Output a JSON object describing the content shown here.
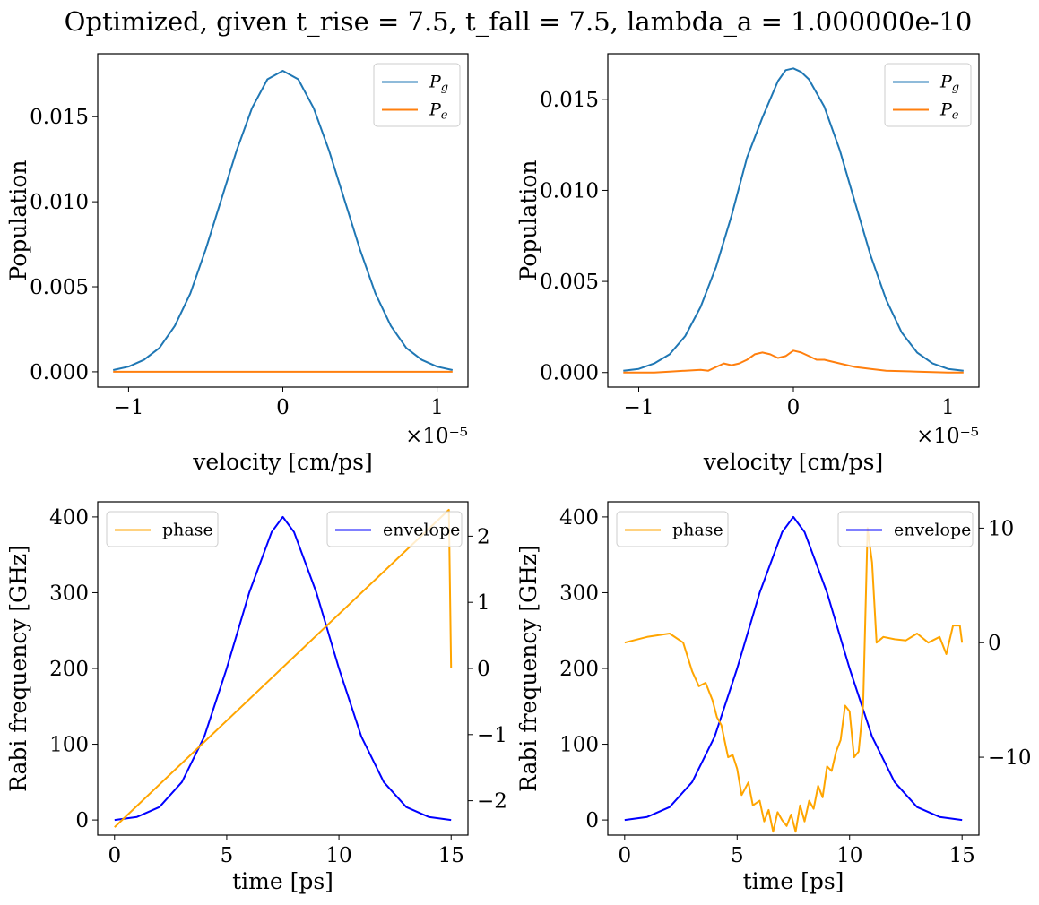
{
  "figure": {
    "title": "Optimized, given t_rise = 7.5, t_fall = 7.5, lambda_a = 1.000000e-10"
  },
  "colors": {
    "pg": "#1f77b4",
    "pe": "#ff7f0e",
    "phase": "#ffa500",
    "envelope": "#0000ff"
  },
  "chart_data": [
    {
      "id": "pop_left",
      "type": "line",
      "xlabel": "velocity [cm/ps]",
      "ylabel": "Population",
      "x_offset_text": "×10⁻⁵",
      "x_scale_exponent": -5,
      "xlim": [
        -1.2,
        1.2
      ],
      "ylim": [
        -0.0009,
        0.0187
      ],
      "x_ticks": [
        -1,
        0,
        1
      ],
      "x_tick_labels": [
        "−1",
        "0",
        "1"
      ],
      "y_ticks": [
        0.0,
        0.005,
        0.01,
        0.015
      ],
      "y_tick_labels": [
        "0.000",
        "0.005",
        "0.010",
        "0.015"
      ],
      "legend": "top-right",
      "grid": false,
      "series": [
        {
          "name": "P_g",
          "color_key": "pg",
          "x": [
            -1.1,
            -1.0,
            -0.9,
            -0.8,
            -0.7,
            -0.6,
            -0.5,
            -0.4,
            -0.3,
            -0.2,
            -0.1,
            0.0,
            0.1,
            0.2,
            0.3,
            0.4,
            0.5,
            0.6,
            0.7,
            0.8,
            0.9,
            1.0,
            1.1
          ],
          "y": [
            0.0001,
            0.0003,
            0.0007,
            0.0014,
            0.0027,
            0.0046,
            0.0072,
            0.0101,
            0.013,
            0.0155,
            0.0172,
            0.0177,
            0.0172,
            0.0155,
            0.013,
            0.0101,
            0.0072,
            0.0046,
            0.0027,
            0.0014,
            0.0007,
            0.0003,
            0.0001
          ]
        },
        {
          "name": "P_e",
          "color_key": "pe",
          "x": [
            -1.1,
            1.1
          ],
          "y": [
            0.0,
            0.0
          ]
        }
      ]
    },
    {
      "id": "pop_right",
      "type": "line",
      "xlabel": "velocity [cm/ps]",
      "ylabel": "Population",
      "x_offset_text": "×10⁻⁵",
      "x_scale_exponent": -5,
      "xlim": [
        -1.2,
        1.2
      ],
      "ylim": [
        -0.0008,
        0.0175
      ],
      "x_ticks": [
        -1,
        0,
        1
      ],
      "x_tick_labels": [
        "−1",
        "0",
        "1"
      ],
      "y_ticks": [
        0.0,
        0.005,
        0.01,
        0.015
      ],
      "y_tick_labels": [
        "0.000",
        "0.005",
        "0.010",
        "0.015"
      ],
      "legend": "top-right",
      "grid": false,
      "series": [
        {
          "name": "P_g",
          "color_key": "pg",
          "x": [
            -1.1,
            -1.0,
            -0.9,
            -0.8,
            -0.7,
            -0.6,
            -0.5,
            -0.4,
            -0.3,
            -0.2,
            -0.1,
            -0.05,
            0.0,
            0.05,
            0.1,
            0.2,
            0.3,
            0.4,
            0.5,
            0.6,
            0.7,
            0.8,
            0.9,
            1.0,
            1.1
          ],
          "y": [
            0.0001,
            0.0002,
            0.0005,
            0.001,
            0.002,
            0.0036,
            0.0058,
            0.0086,
            0.0118,
            0.014,
            0.016,
            0.0166,
            0.0167,
            0.0165,
            0.0161,
            0.0146,
            0.0122,
            0.0093,
            0.0064,
            0.004,
            0.0022,
            0.0011,
            0.0005,
            0.0002,
            0.0001
          ]
        },
        {
          "name": "P_e",
          "color_key": "pe",
          "x": [
            -1.1,
            -0.9,
            -0.8,
            -0.7,
            -0.6,
            -0.55,
            -0.5,
            -0.45,
            -0.4,
            -0.35,
            -0.3,
            -0.25,
            -0.2,
            -0.15,
            -0.1,
            -0.05,
            0.0,
            0.05,
            0.1,
            0.15,
            0.2,
            0.3,
            0.4,
            0.5,
            0.6,
            0.8,
            1.0,
            1.1
          ],
          "y": [
            0.0,
            0.0,
            5e-05,
            0.0001,
            0.00015,
            0.0001,
            0.0003,
            0.0005,
            0.0004,
            0.0005,
            0.0007,
            0.001,
            0.0011,
            0.001,
            0.0008,
            0.0009,
            0.0012,
            0.0011,
            0.0009,
            0.0007,
            0.0007,
            0.0005,
            0.0003,
            0.0002,
            0.0001,
            5e-05,
            0.0,
            0.0
          ]
        }
      ]
    },
    {
      "id": "pulse_left",
      "type": "line",
      "xlabel": "time [ps]",
      "ylabel": "Rabi frequency [GHz]",
      "xlim": [
        -0.75,
        15.75
      ],
      "ylim": [
        -20,
        420
      ],
      "y2lim": [
        -2.52,
        2.52
      ],
      "x_ticks": [
        0,
        5,
        10,
        15
      ],
      "x_tick_labels": [
        "0",
        "5",
        "10",
        "15"
      ],
      "y_ticks": [
        0,
        100,
        200,
        300,
        400
      ],
      "y_tick_labels": [
        "0",
        "100",
        "200",
        "300",
        "400"
      ],
      "y2_ticks": [
        -2,
        -1,
        0,
        1,
        2
      ],
      "y2_tick_labels": [
        "−2",
        "−1",
        "0",
        "1",
        "2"
      ],
      "legend": "top-left (phase), top-right (envelope)",
      "grid": false,
      "series": [
        {
          "name": "envelope",
          "axis": "left",
          "color_key": "envelope",
          "x": [
            0,
            1,
            2,
            3,
            4,
            5,
            6,
            7,
            7.5,
            8,
            9,
            10,
            11,
            12,
            13,
            14,
            15
          ],
          "y": [
            0,
            4,
            17,
            50,
            110,
            200,
            300,
            380,
            400,
            380,
            300,
            200,
            110,
            50,
            17,
            4,
            0
          ]
        },
        {
          "name": "phase",
          "axis": "right",
          "color_key": "phase",
          "x": [
            0,
            14.9,
            15.0
          ],
          "y": [
            -2.4,
            2.4,
            0.0
          ]
        }
      ]
    },
    {
      "id": "pulse_right",
      "type": "line",
      "xlabel": "time [ps]",
      "ylabel": "Rabi frequency [GHz]",
      "xlim": [
        -0.75,
        15.75
      ],
      "ylim": [
        -20,
        420
      ],
      "y2lim": [
        -16.8,
        12.3
      ],
      "x_ticks": [
        0,
        5,
        10,
        15
      ],
      "x_tick_labels": [
        "0",
        "5",
        "10",
        "15"
      ],
      "y_ticks": [
        0,
        100,
        200,
        300,
        400
      ],
      "y_tick_labels": [
        "0",
        "100",
        "200",
        "300",
        "400"
      ],
      "y2_ticks": [
        -10,
        0,
        10
      ],
      "y2_tick_labels": [
        "−10",
        "0",
        "10"
      ],
      "legend": "top-left (phase), top-right (envelope)",
      "grid": false,
      "series": [
        {
          "name": "envelope",
          "axis": "left",
          "color_key": "envelope",
          "x": [
            0,
            1,
            2,
            3,
            4,
            5,
            6,
            7,
            7.5,
            8,
            9,
            10,
            11,
            12,
            13,
            14,
            15
          ],
          "y": [
            0,
            4,
            17,
            50,
            110,
            200,
            300,
            380,
            400,
            380,
            300,
            200,
            110,
            50,
            17,
            4,
            0
          ]
        },
        {
          "name": "phase",
          "axis": "right",
          "color_key": "phase",
          "x": [
            0,
            1.0,
            2.0,
            2.6,
            3.0,
            3.3,
            3.6,
            3.9,
            4.1,
            4.3,
            4.6,
            4.8,
            5.0,
            5.2,
            5.5,
            5.7,
            6.0,
            6.2,
            6.4,
            6.6,
            6.8,
            7.0,
            7.2,
            7.4,
            7.6,
            7.8,
            8.0,
            8.2,
            8.4,
            8.6,
            8.8,
            9.0,
            9.2,
            9.4,
            9.6,
            9.8,
            10.0,
            10.2,
            10.4,
            10.6,
            10.8,
            11.0,
            11.2,
            11.5,
            12.0,
            12.5,
            13.0,
            13.5,
            14.0,
            14.3,
            14.6,
            14.9,
            15.0
          ],
          "y": [
            0.0,
            0.5,
            0.8,
            0.0,
            -2.5,
            -3.8,
            -3.5,
            -5.0,
            -6.5,
            -7.2,
            -10.0,
            -9.8,
            -11.0,
            -13.3,
            -12.2,
            -14.2,
            -13.8,
            -15.6,
            -14.6,
            -16.5,
            -14.8,
            -15.5,
            -16.0,
            -15.0,
            -16.5,
            -14.2,
            -15.6,
            -13.8,
            -14.5,
            -12.5,
            -13.5,
            -10.8,
            -11.2,
            -9.5,
            -8.5,
            -5.5,
            -6.0,
            -10.0,
            -9.5,
            -5.5,
            10.0,
            7.0,
            0.0,
            0.5,
            0.3,
            0.2,
            0.8,
            0.0,
            0.5,
            -1.0,
            1.5,
            1.5,
            0.0
          ]
        }
      ]
    }
  ]
}
